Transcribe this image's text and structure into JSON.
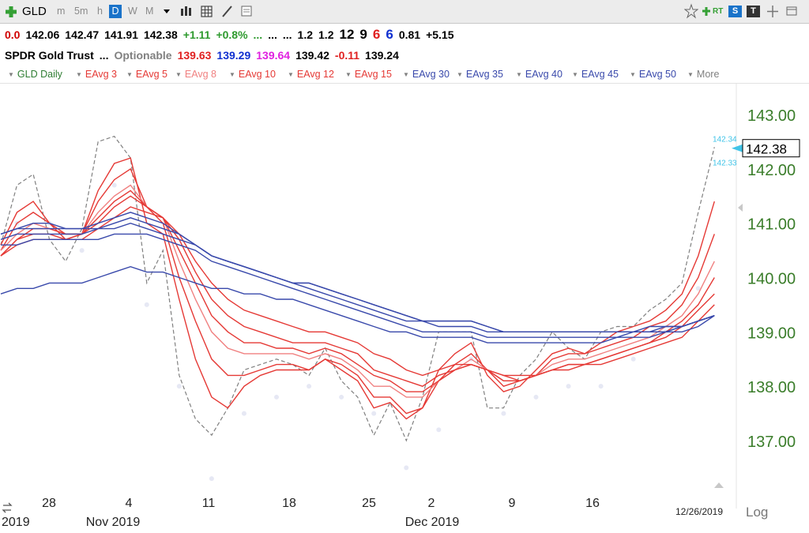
{
  "toolbar": {
    "symbol": "GLD",
    "timeframes": [
      "m",
      "5m",
      "h",
      "D",
      "W",
      "M"
    ],
    "active_timeframe": "D",
    "rt_label": "RT",
    "s_label": "S",
    "t_label": "T",
    "icons": [
      "add-symbol-icon",
      "dropdown-icon",
      "bar-chart-icon",
      "layout-icon",
      "draw-icon",
      "notes-icon",
      "favorite-icon",
      "add-icon",
      "real-time-icon",
      "scan-icon",
      "text-icon",
      "move-icon",
      "window-icon"
    ]
  },
  "quote": {
    "line1": [
      {
        "text": "0.0",
        "color": "#d00000"
      },
      {
        "text": "142.06",
        "color": "#000000"
      },
      {
        "text": "142.47",
        "color": "#000000"
      },
      {
        "text": "141.91",
        "color": "#000000"
      },
      {
        "text": "142.38",
        "color": "#000000"
      },
      {
        "text": "+1.11",
        "color": "#2e9a2e"
      },
      {
        "text": "+0.8%",
        "color": "#2e9a2e"
      },
      {
        "text": "...",
        "color": "#2e9a2e"
      },
      {
        "text": "...",
        "color": "#000000"
      },
      {
        "text": "...",
        "color": "#000000"
      },
      {
        "text": "1.2",
        "color": "#000000"
      },
      {
        "text": "1.2",
        "color": "#000000"
      },
      {
        "text": "12",
        "color": "#000000"
      },
      {
        "text": "9",
        "color": "#000000"
      },
      {
        "text": "6",
        "color": "#e02020"
      },
      {
        "text": "6",
        "color": "#1030d0"
      },
      {
        "text": "0.81",
        "color": "#000000"
      },
      {
        "text": "+5.15",
        "color": "#000000"
      }
    ],
    "line2": [
      {
        "text": "SPDR Gold Trust",
        "color": "#000000"
      },
      {
        "text": "...",
        "color": "#000000"
      },
      {
        "text": "Optionable",
        "color": "#808080"
      },
      {
        "text": "139.63",
        "color": "#e02020"
      },
      {
        "text": "139.29",
        "color": "#1030d0"
      },
      {
        "text": "139.64",
        "color": "#e020e0"
      },
      {
        "text": "139.42",
        "color": "#000000"
      },
      {
        "text": "-0.11",
        "color": "#e02020"
      },
      {
        "text": "139.24",
        "color": "#000000"
      }
    ]
  },
  "studies": [
    {
      "label": "GLD Daily",
      "color": "#2e7d32"
    },
    {
      "label": "EAvg 3",
      "color": "#e53935"
    },
    {
      "label": "EAvg 5",
      "color": "#e53935"
    },
    {
      "label": "EAvg 8",
      "color": "#f08080"
    },
    {
      "label": "EAvg 10",
      "color": "#e53935"
    },
    {
      "label": "EAvg 12",
      "color": "#e53935"
    },
    {
      "label": "EAvg 15",
      "color": "#e53935"
    },
    {
      "label": "EAvg 30",
      "color": "#3949ab"
    },
    {
      "label": "EAvg 35",
      "color": "#3949ab"
    },
    {
      "label": "EAvg 40",
      "color": "#3949ab"
    },
    {
      "label": "EAvg 45",
      "color": "#3949ab"
    },
    {
      "label": "EAvg 50",
      "color": "#3949ab"
    },
    {
      "label": "More",
      "color": "#808080"
    }
  ],
  "chart_data": {
    "type": "line",
    "ylim": [
      136.3,
      143.7
    ],
    "y_ticks": [
      "143.00",
      "142.00",
      "141.00",
      "140.00",
      "139.00",
      "138.00",
      "137.00"
    ],
    "x_ticks": [
      "28",
      "4",
      "11",
      "18",
      "25",
      "2",
      "9",
      "16"
    ],
    "months": [
      "2019",
      "Nov 2019",
      "Dec 2019"
    ],
    "date_label": "12/26/2019",
    "scale_label": "Log",
    "current_price": "142.38",
    "bid": "142.34",
    "ask": "142.33",
    "x_dates": [
      "2019-10-23",
      "2019-10-24",
      "2019-10-25",
      "2019-10-28",
      "2019-10-29",
      "2019-10-30",
      "2019-10-31",
      "2019-11-01",
      "2019-11-04",
      "2019-11-05",
      "2019-11-06",
      "2019-11-07",
      "2019-11-08",
      "2019-11-11",
      "2019-11-12",
      "2019-11-13",
      "2019-11-14",
      "2019-11-15",
      "2019-11-18",
      "2019-11-19",
      "2019-11-20",
      "2019-11-21",
      "2019-11-22",
      "2019-11-25",
      "2019-11-26",
      "2019-11-27",
      "2019-11-29",
      "2019-12-02",
      "2019-12-03",
      "2019-12-04",
      "2019-12-05",
      "2019-12-06",
      "2019-12-09",
      "2019-12-10",
      "2019-12-11",
      "2019-12-12",
      "2019-12-13",
      "2019-12-16",
      "2019-12-17",
      "2019-12-18",
      "2019-12-19",
      "2019-12-20",
      "2019-12-23",
      "2019-12-24",
      "2019-12-26"
    ],
    "series": [
      {
        "name": "GLD Daily",
        "color": "#808080",
        "dashed": true,
        "values": [
          140.6,
          141.7,
          141.9,
          140.7,
          140.3,
          140.9,
          142.5,
          142.6,
          142.2,
          139.9,
          140.5,
          138.2,
          137.4,
          137.1,
          137.6,
          138.3,
          138.4,
          138.5,
          138.4,
          138.2,
          138.7,
          138.1,
          137.8,
          137.1,
          137.7,
          137.0,
          137.8,
          139.0,
          139.0,
          139.0,
          137.6,
          137.6,
          138.2,
          138.5,
          139.0,
          138.7,
          138.5,
          139.0,
          139.1,
          139.1,
          139.4,
          139.6,
          139.9,
          141.2,
          142.4
        ]
      },
      {
        "name": "EAvg 3",
        "color": "#e53935",
        "values": [
          140.6,
          141.2,
          141.4,
          141.0,
          140.7,
          140.8,
          141.6,
          142.1,
          142.2,
          141.0,
          140.8,
          139.6,
          138.5,
          137.8,
          137.6,
          138.0,
          138.2,
          138.3,
          138.3,
          138.3,
          138.5,
          138.3,
          138.1,
          137.6,
          137.7,
          137.4,
          137.6,
          138.3,
          138.6,
          138.8,
          138.2,
          137.9,
          138.0,
          138.3,
          138.6,
          138.7,
          138.6,
          138.8,
          139.0,
          139.1,
          139.2,
          139.4,
          139.7,
          140.4,
          141.4
        ]
      },
      {
        "name": "EAvg 5",
        "color": "#e53935",
        "values": [
          140.5,
          141.0,
          141.2,
          141.0,
          140.8,
          140.8,
          141.4,
          141.8,
          142.0,
          141.3,
          141.0,
          140.0,
          139.2,
          138.5,
          138.2,
          138.2,
          138.3,
          138.4,
          138.4,
          138.3,
          138.5,
          138.4,
          138.2,
          137.8,
          137.8,
          137.5,
          137.6,
          138.1,
          138.4,
          138.6,
          138.3,
          138.0,
          138.1,
          138.2,
          138.5,
          138.6,
          138.6,
          138.7,
          138.8,
          138.9,
          139.1,
          139.2,
          139.5,
          140.0,
          140.8
        ]
      },
      {
        "name": "EAvg 8",
        "color": "#f08080",
        "values": [
          140.5,
          140.8,
          141.0,
          140.9,
          140.8,
          140.8,
          141.2,
          141.5,
          141.7,
          141.3,
          141.1,
          140.3,
          139.6,
          139.0,
          138.7,
          138.6,
          138.6,
          138.6,
          138.6,
          138.5,
          138.6,
          138.5,
          138.3,
          138.0,
          138.0,
          137.8,
          137.8,
          138.1,
          138.3,
          138.5,
          138.3,
          138.1,
          138.1,
          138.2,
          138.4,
          138.5,
          138.5,
          138.6,
          138.7,
          138.8,
          138.9,
          139.1,
          139.3,
          139.7,
          140.3
        ]
      },
      {
        "name": "EAvg 10",
        "color": "#e53935",
        "values": [
          140.4,
          140.7,
          140.9,
          140.9,
          140.8,
          140.8,
          141.1,
          141.4,
          141.6,
          141.3,
          141.1,
          140.5,
          139.9,
          139.3,
          139.0,
          138.8,
          138.8,
          138.7,
          138.7,
          138.6,
          138.7,
          138.6,
          138.4,
          138.2,
          138.1,
          137.9,
          137.9,
          138.1,
          138.3,
          138.4,
          138.3,
          138.1,
          138.1,
          138.2,
          138.3,
          138.4,
          138.4,
          138.5,
          138.6,
          138.7,
          138.8,
          139.0,
          139.2,
          139.5,
          140.0
        ]
      },
      {
        "name": "EAvg 12",
        "color": "#e53935",
        "values": [
          140.4,
          140.7,
          140.8,
          140.8,
          140.7,
          140.8,
          141.0,
          141.3,
          141.5,
          141.3,
          141.1,
          140.7,
          140.1,
          139.6,
          139.3,
          139.1,
          139.0,
          138.9,
          138.8,
          138.8,
          138.8,
          138.7,
          138.6,
          138.3,
          138.2,
          138.1,
          138.0,
          138.2,
          138.3,
          138.4,
          138.3,
          138.2,
          138.1,
          138.2,
          138.3,
          138.4,
          138.4,
          138.5,
          138.6,
          138.7,
          138.8,
          138.9,
          139.1,
          139.4,
          139.7
        ]
      },
      {
        "name": "EAvg 15",
        "color": "#e53935",
        "values": [
          140.4,
          140.6,
          140.7,
          140.7,
          140.7,
          140.7,
          140.9,
          141.1,
          141.3,
          141.2,
          141.1,
          140.8,
          140.3,
          139.9,
          139.6,
          139.4,
          139.3,
          139.2,
          139.1,
          139.0,
          139.0,
          138.9,
          138.8,
          138.6,
          138.5,
          138.3,
          138.2,
          138.3,
          138.4,
          138.4,
          138.3,
          138.2,
          138.2,
          138.2,
          138.3,
          138.3,
          138.4,
          138.4,
          138.5,
          138.6,
          138.7,
          138.8,
          138.9,
          139.2,
          139.5
        ]
      },
      {
        "name": "EAvg 30",
        "color": "#3949ab",
        "values": [
          140.8,
          140.9,
          141.0,
          141.0,
          140.9,
          140.9,
          141.0,
          141.1,
          141.2,
          141.1,
          141.0,
          140.8,
          140.6,
          140.4,
          140.3,
          140.2,
          140.1,
          140.0,
          139.9,
          139.9,
          139.8,
          139.7,
          139.6,
          139.5,
          139.4,
          139.3,
          139.2,
          139.2,
          139.2,
          139.2,
          139.1,
          139.0,
          139.0,
          139.0,
          139.0,
          139.0,
          139.0,
          139.0,
          139.0,
          139.0,
          139.1,
          139.1,
          139.1,
          139.2,
          139.3
        ]
      },
      {
        "name": "EAvg 35",
        "color": "#3949ab",
        "values": [
          140.8,
          140.9,
          140.9,
          140.9,
          140.9,
          140.9,
          140.9,
          141.0,
          141.1,
          141.0,
          140.9,
          140.8,
          140.6,
          140.4,
          140.3,
          140.2,
          140.1,
          140.0,
          139.9,
          139.9,
          139.8,
          139.7,
          139.6,
          139.5,
          139.4,
          139.3,
          139.2,
          139.2,
          139.2,
          139.2,
          139.1,
          139.0,
          139.0,
          139.0,
          139.0,
          139.0,
          139.0,
          139.0,
          139.0,
          139.0,
          139.0,
          139.1,
          139.1,
          139.2,
          139.3
        ]
      },
      {
        "name": "EAvg 40",
        "color": "#3949ab",
        "values": [
          140.7,
          140.8,
          140.8,
          140.8,
          140.8,
          140.8,
          140.9,
          140.9,
          141.0,
          140.9,
          140.8,
          140.7,
          140.6,
          140.4,
          140.3,
          140.2,
          140.1,
          140.0,
          139.9,
          139.8,
          139.7,
          139.6,
          139.5,
          139.4,
          139.3,
          139.2,
          139.2,
          139.1,
          139.1,
          139.1,
          139.0,
          139.0,
          139.0,
          139.0,
          139.0,
          139.0,
          139.0,
          139.0,
          139.0,
          139.0,
          139.0,
          139.0,
          139.1,
          139.2,
          139.3
        ]
      },
      {
        "name": "EAvg 45",
        "color": "#3949ab",
        "values": [
          140.6,
          140.6,
          140.7,
          140.7,
          140.7,
          140.7,
          140.7,
          140.8,
          140.8,
          140.8,
          140.7,
          140.6,
          140.5,
          140.3,
          140.2,
          140.1,
          140.0,
          139.9,
          139.8,
          139.7,
          139.6,
          139.5,
          139.4,
          139.3,
          139.2,
          139.1,
          139.0,
          139.0,
          139.0,
          139.0,
          138.9,
          138.9,
          138.9,
          138.9,
          138.9,
          138.9,
          138.9,
          138.9,
          138.9,
          139.0,
          139.0,
          139.0,
          139.1,
          139.2,
          139.3
        ]
      },
      {
        "name": "EAvg 50",
        "color": "#3949ab",
        "values": [
          139.7,
          139.8,
          139.8,
          139.9,
          139.9,
          139.9,
          140.0,
          140.1,
          140.2,
          140.1,
          140.1,
          140.0,
          139.9,
          139.8,
          139.8,
          139.7,
          139.7,
          139.6,
          139.6,
          139.5,
          139.4,
          139.3,
          139.2,
          139.1,
          139.0,
          139.0,
          138.9,
          138.9,
          138.9,
          138.9,
          138.8,
          138.8,
          138.8,
          138.8,
          138.8,
          138.8,
          138.8,
          138.8,
          138.9,
          138.9,
          138.9,
          139.0,
          139.0,
          139.1,
          139.3
        ]
      }
    ],
    "dots": [
      [
        1,
        141.0
      ],
      [
        3,
        141.0
      ],
      [
        5,
        140.5
      ],
      [
        7,
        141.7
      ],
      [
        9,
        139.5
      ],
      [
        11,
        138.0
      ],
      [
        13,
        136.3
      ],
      [
        15,
        137.5
      ],
      [
        17,
        137.8
      ],
      [
        19,
        138.0
      ],
      [
        21,
        137.8
      ],
      [
        23,
        137.5
      ],
      [
        25,
        136.5
      ],
      [
        27,
        137.2
      ],
      [
        29,
        138.5
      ],
      [
        31,
        137.5
      ],
      [
        33,
        137.8
      ],
      [
        35,
        138.0
      ],
      [
        37,
        138.0
      ],
      [
        39,
        138.5
      ],
      [
        41,
        139.0
      ],
      [
        43,
        139.8
      ]
    ]
  }
}
